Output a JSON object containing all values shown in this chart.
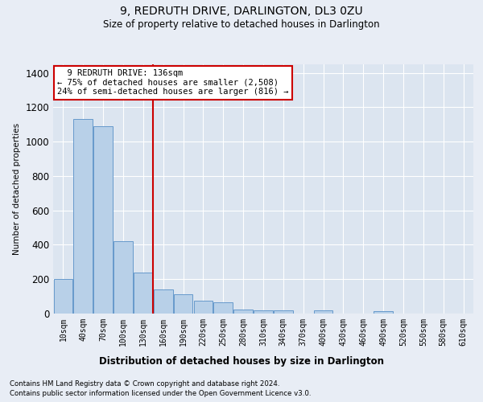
{
  "title": "9, REDRUTH DRIVE, DARLINGTON, DL3 0ZU",
  "subtitle": "Size of property relative to detached houses in Darlington",
  "xlabel": "Distribution of detached houses by size in Darlington",
  "ylabel": "Number of detached properties",
  "footnote1": "Contains HM Land Registry data © Crown copyright and database right 2024.",
  "footnote2": "Contains public sector information licensed under the Open Government Licence v3.0.",
  "annotation_line1": "  9 REDRUTH DRIVE: 136sqm",
  "annotation_line2": "← 75% of detached houses are smaller (2,508)",
  "annotation_line3": "24% of semi-detached houses are larger (816) →",
  "bar_categories": [
    "10sqm",
    "40sqm",
    "70sqm",
    "100sqm",
    "130sqm",
    "160sqm",
    "190sqm",
    "220sqm",
    "250sqm",
    "280sqm",
    "310sqm",
    "340sqm",
    "370sqm",
    "400sqm",
    "430sqm",
    "460sqm",
    "490sqm",
    "520sqm",
    "550sqm",
    "580sqm",
    "610sqm"
  ],
  "bar_values": [
    200,
    1130,
    1090,
    420,
    240,
    140,
    110,
    75,
    65,
    25,
    20,
    20,
    0,
    20,
    0,
    0,
    15,
    0,
    0,
    0,
    0
  ],
  "bar_color": "#b8d0e8",
  "bar_edgecolor": "#6699cc",
  "vline_x": 4.5,
  "vline_color": "#cc0000",
  "ylim": [
    0,
    1450
  ],
  "yticks": [
    0,
    200,
    400,
    600,
    800,
    1000,
    1200,
    1400
  ],
  "bg_color": "#e8edf5",
  "plot_bg_color": "#dce5f0",
  "grid_color": "#ffffff",
  "annotation_box_edgecolor": "#cc0000",
  "annotation_box_facecolor": "#ffffff"
}
